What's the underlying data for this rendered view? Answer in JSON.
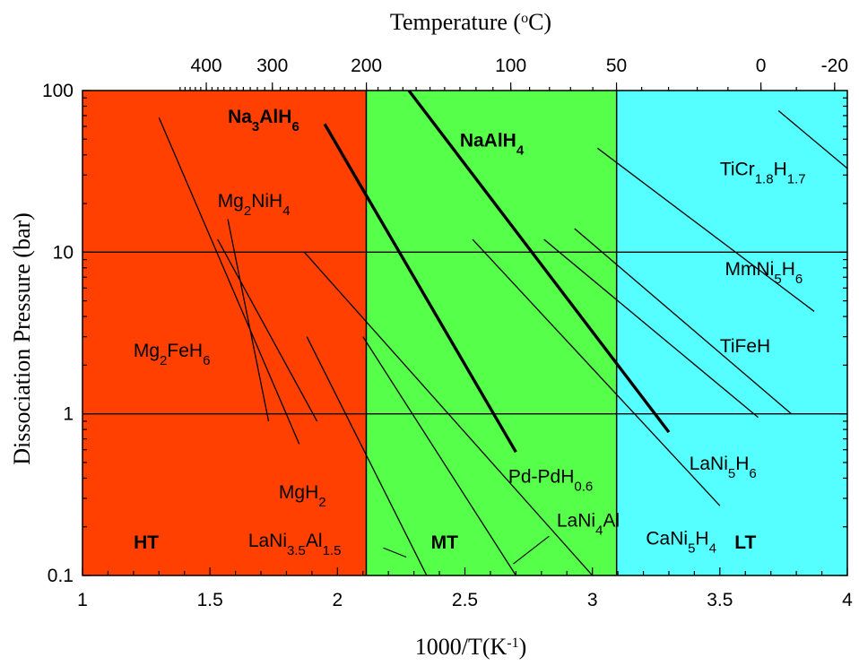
{
  "chart_data": {
    "type": "line",
    "title": "",
    "xlabel": "1000/T(K",
    "xlabel_sup": "-1",
    "xlabel_end": ")",
    "ylabel": "Dissociation Pressure (bar)",
    "top_axis_label": "Temperature (",
    "top_axis_label_sup": "o",
    "top_axis_label_end": "C)",
    "xlim": [
      1,
      4
    ],
    "ylim": [
      0.1,
      100
    ],
    "y_scale": "log",
    "x_ticks": [
      "1",
      "1.5",
      "2",
      "2.5",
      "3",
      "3.5",
      "4"
    ],
    "y_ticks": [
      "0.1",
      "1",
      "10",
      "100"
    ],
    "top_ticks": [
      {
        "label": "400",
        "celsius": 400
      },
      {
        "label": "300",
        "celsius": 300
      },
      {
        "label": "200",
        "celsius": 200
      },
      {
        "label": "100",
        "celsius": 100
      },
      {
        "label": "50",
        "celsius": 50
      },
      {
        "label": "0",
        "celsius": 0
      },
      {
        "label": "-20",
        "celsius": -20
      }
    ],
    "horizontal_grid": [
      1,
      10
    ],
    "regions": [
      {
        "label": "HT",
        "x0": 1.0,
        "x1": 2.113,
        "color": "#ff4000",
        "label_x": 1.25,
        "label_y": 0.16
      },
      {
        "label": "MT",
        "x0": 2.113,
        "x1": 3.095,
        "color": "#55ff4a",
        "label_x": 2.42,
        "label_y": 0.16
      },
      {
        "label": "LT",
        "x0": 3.095,
        "x1": 4.0,
        "color": "#55ffff",
        "label_x": 3.6,
        "label_y": 0.16
      }
    ],
    "series": [
      {
        "name": "Na3AlH6",
        "bold": true,
        "points": [
          [
            1.95,
            62
          ],
          [
            2.7,
            0.58
          ]
        ]
      },
      {
        "name": "NaAlH4",
        "bold": true,
        "points": [
          [
            2.28,
            100
          ],
          [
            3.3,
            0.77
          ]
        ]
      },
      {
        "name": "MgH2",
        "points": [
          [
            1.3,
            68
          ],
          [
            1.85,
            0.65
          ]
        ]
      },
      {
        "name": "Mg2NiH4",
        "points": [
          [
            1.53,
            12
          ],
          [
            1.92,
            0.9
          ]
        ]
      },
      {
        "name": "Mg2FeH6",
        "points": [
          [
            1.57,
            16
          ],
          [
            1.73,
            0.9
          ]
        ]
      },
      {
        "name": "LaNi3.5Al1.5",
        "points": [
          [
            1.88,
            3.0
          ],
          [
            2.35,
            0.1
          ]
        ]
      },
      {
        "name": "LaNi4Al",
        "points": [
          [
            2.1,
            3.0
          ],
          [
            2.7,
            0.1
          ]
        ]
      },
      {
        "name": "Pd-PdH0.6",
        "points": [
          [
            1.87,
            10
          ],
          [
            3.0,
            0.1
          ]
        ]
      },
      {
        "name": "CaNi5H4",
        "points": [
          [
            2.53,
            12
          ],
          [
            3.5,
            0.27
          ]
        ]
      },
      {
        "name": "LaNi5H6",
        "points": [
          [
            2.93,
            14
          ],
          [
            3.78,
            1.0
          ]
        ]
      },
      {
        "name": "TiFeH",
        "points": [
          [
            2.81,
            12
          ],
          [
            3.65,
            0.95
          ]
        ]
      },
      {
        "name": "MmNi5H6",
        "points": [
          [
            3.02,
            44
          ],
          [
            3.87,
            4.3
          ]
        ]
      },
      {
        "name": "TiCr1.8H1.7",
        "points": [
          [
            3.73,
            75
          ],
          [
            4.0,
            33
          ]
        ]
      }
    ],
    "labels": [
      {
        "name": "Na3AlH6",
        "parts": [
          [
            "Na",
            ""
          ],
          [
            "3",
            "sub"
          ],
          [
            "AlH",
            ""
          ],
          [
            "6",
            "sub"
          ]
        ],
        "x": 1.57,
        "y": 63,
        "bold": true
      },
      {
        "name": "NaAlH4",
        "parts": [
          [
            "NaAlH",
            ""
          ],
          [
            "4",
            "sub"
          ]
        ],
        "x": 2.48,
        "y": 45,
        "bold": true
      },
      {
        "name": "TiCr1.8H1.7",
        "parts": [
          [
            "TiCr",
            ""
          ],
          [
            "1.8",
            "sub"
          ],
          [
            "H",
            ""
          ],
          [
            "1.7",
            "sub"
          ]
        ],
        "x": 3.5,
        "y": 30
      },
      {
        "name": "Mg2NiH4",
        "parts": [
          [
            "Mg",
            ""
          ],
          [
            "2",
            "sub"
          ],
          [
            "NiH",
            ""
          ],
          [
            "4",
            "sub"
          ]
        ],
        "x": 1.53,
        "y": 19
      },
      {
        "name": "MmNi5H6",
        "parts": [
          [
            "MmNi",
            ""
          ],
          [
            "5",
            "sub"
          ],
          [
            "H",
            ""
          ],
          [
            "6",
            "sub"
          ]
        ],
        "x": 3.52,
        "y": 7.2
      },
      {
        "name": "Mg2FeH6",
        "parts": [
          [
            "Mg",
            ""
          ],
          [
            "2",
            "sub"
          ],
          [
            "FeH",
            ""
          ],
          [
            "6",
            "sub"
          ]
        ],
        "x": 1.2,
        "y": 2.25
      },
      {
        "name": "TiFeH",
        "parts": [
          [
            "TiFeH",
            ""
          ]
        ],
        "x": 3.5,
        "y": 2.4
      },
      {
        "name": "MgH2",
        "parts": [
          [
            "MgH",
            ""
          ],
          [
            "2",
            "sub"
          ]
        ],
        "x": 1.77,
        "y": 0.3
      },
      {
        "name": "Pd-PdH0.6",
        "parts": [
          [
            "Pd-PdH",
            ""
          ],
          [
            "0.6",
            "sub"
          ]
        ],
        "x": 2.67,
        "y": 0.375
      },
      {
        "name": "LaNi5H6",
        "parts": [
          [
            "LaNi",
            ""
          ],
          [
            "5",
            "sub"
          ],
          [
            "H",
            ""
          ],
          [
            "6",
            "sub"
          ]
        ],
        "x": 3.38,
        "y": 0.45
      },
      {
        "name": "LaNi4Al",
        "parts": [
          [
            "LaNi",
            ""
          ],
          [
            "4",
            "sub"
          ],
          [
            "Al",
            ""
          ]
        ],
        "x": 2.86,
        "y": 0.2
      },
      {
        "name": "LaNi3.5Al1.5",
        "parts": [
          [
            "LaNi",
            ""
          ],
          [
            "3.5",
            "sub"
          ],
          [
            "Al",
            ""
          ],
          [
            "1.5",
            "sub"
          ]
        ],
        "x": 1.65,
        "y": 0.15
      },
      {
        "name": "CaNi5H4",
        "parts": [
          [
            "CaNi",
            ""
          ],
          [
            "5",
            "sub"
          ],
          [
            "H",
            ""
          ],
          [
            "4",
            "sub"
          ]
        ],
        "x": 3.21,
        "y": 0.155
      }
    ],
    "leaders": [
      {
        "name": "LaNi3.5Al1.5",
        "from": [
          2.18,
          0.148
        ],
        "to": [
          2.27,
          0.13
        ]
      },
      {
        "name": "LaNi4Al",
        "from": [
          2.69,
          0.118
        ],
        "to": [
          2.83,
          0.175
        ]
      }
    ]
  }
}
